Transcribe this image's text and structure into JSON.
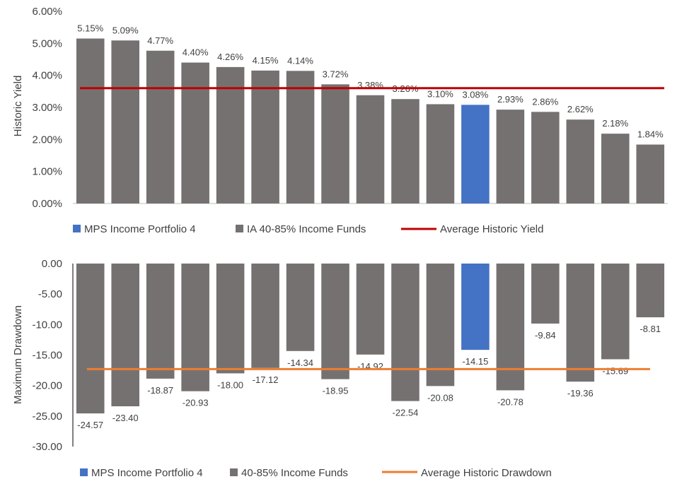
{
  "chart_data": [
    {
      "type": "bar",
      "ylabel": "Historic Yield",
      "ylim": [
        0,
        6
      ],
      "yticks": [
        "0.00%",
        "1.00%",
        "2.00%",
        "3.00%",
        "4.00%",
        "5.00%",
        "6.00%"
      ],
      "values": [
        5.15,
        5.09,
        4.77,
        4.4,
        4.26,
        4.15,
        4.14,
        3.72,
        3.38,
        3.26,
        3.1,
        3.08,
        2.93,
        2.86,
        2.62,
        2.18,
        1.84
      ],
      "labels": [
        "5.15%",
        "5.09%",
        "4.77%",
        "4.40%",
        "4.26%",
        "4.15%",
        "4.14%",
        "3.72%",
        "3.38%",
        "3.26%",
        "3.10%",
        "3.08%",
        "2.93%",
        "2.86%",
        "2.62%",
        "2.18%",
        "1.84%"
      ],
      "highlight_index": 11,
      "average": 3.6,
      "colors": {
        "bar": "#767171",
        "highlight": "#4472C4",
        "average": "#C00000"
      },
      "legend": [
        "MPS Income Portfolio 4",
        "IA 40-85% Income Funds",
        "Average Historic Yield"
      ],
      "legend_position": "bottom"
    },
    {
      "type": "bar",
      "ylabel": "Maximum Drawdown",
      "ylim": [
        -30,
        0
      ],
      "yticks": [
        "0.00",
        "-5.00",
        "-10.00",
        "-15.00",
        "-20.00",
        "-25.00",
        "-30.00"
      ],
      "values": [
        -24.57,
        -23.4,
        -18.87,
        -20.93,
        -18.0,
        -17.12,
        -14.34,
        -18.95,
        -14.92,
        -22.54,
        -20.08,
        -14.15,
        -20.78,
        -9.84,
        -19.36,
        -15.69,
        -8.81
      ],
      "labels": [
        "-24.57",
        "-23.40",
        "-18.87",
        "-20.93",
        "-18.00",
        "-17.12",
        "-14.34",
        "-18.95",
        "-14.92",
        "-22.54",
        "-20.08",
        "-14.15",
        "-20.78",
        "-9.84",
        "-19.36",
        "-15.69",
        "-8.81"
      ],
      "highlight_index": 11,
      "average": -17.3,
      "colors": {
        "bar": "#767171",
        "highlight": "#4472C4",
        "average": "#ED7D31"
      },
      "legend": [
        "MPS Income Portfolio 4",
        "40-85% Income Funds",
        "Average Historic Drawdown"
      ],
      "legend_position": "bottom"
    }
  ]
}
